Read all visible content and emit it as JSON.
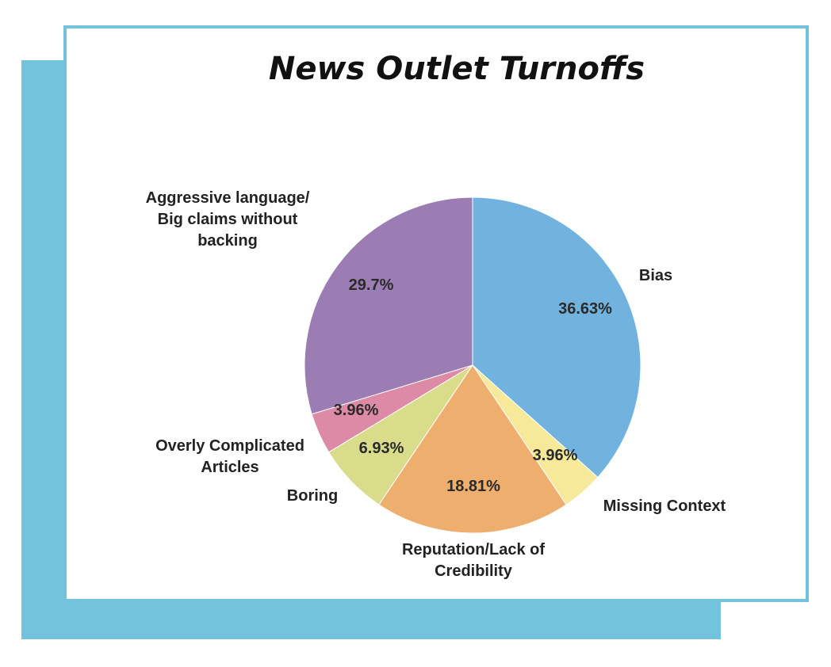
{
  "chart_data": {
    "type": "pie",
    "title": "News Outlet Turnoffs",
    "slices": [
      {
        "category": [
          "Bias"
        ],
        "value": 36.63,
        "value_label": "36.63%",
        "color": "#72b2df"
      },
      {
        "category": [
          "Missing Context"
        ],
        "value": 3.96,
        "value_label": "3.96%",
        "color": "#f6e99a"
      },
      {
        "category": [
          "Reputation/Lack of",
          "Credibility"
        ],
        "value": 18.81,
        "value_label": "18.81%",
        "color": "#eeae6e"
      },
      {
        "category": [
          "Boring"
        ],
        "value": 6.93,
        "value_label": "6.93%",
        "color": "#d8dc8b"
      },
      {
        "category": [
          "Overly Complicated",
          "Articles"
        ],
        "value": 3.96,
        "value_label": "3.96%",
        "color": "#dc8aa6"
      },
      {
        "category": [
          "Aggressive language/",
          "Big claims without",
          "backing"
        ],
        "value": 29.7,
        "value_label": "29.7%",
        "color": "#9b7db3"
      }
    ],
    "legend": "none"
  }
}
